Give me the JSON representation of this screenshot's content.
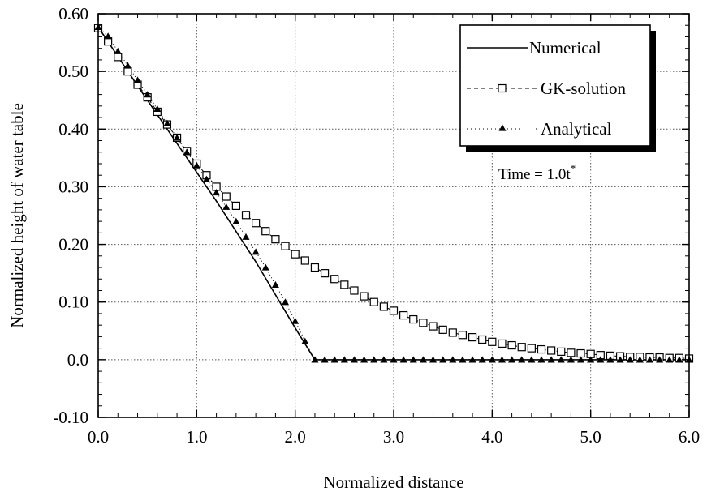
{
  "chart_data": {
    "type": "line",
    "title": "",
    "xlabel": "Normalized distance",
    "ylabel": "Normalized height of water table",
    "xlim": [
      0.0,
      6.0
    ],
    "ylim": [
      -0.1,
      0.6
    ],
    "grid": true,
    "x_ticks": [
      "0.0",
      "1.0",
      "2.0",
      "3.0",
      "4.0",
      "5.0",
      "6.0"
    ],
    "y_ticks": [
      "-0.10",
      "0.0",
      "0.10",
      "0.20",
      "0.30",
      "0.40",
      "0.50",
      "0.60"
    ],
    "legend": {
      "position": "top-right",
      "entries": [
        "Numerical",
        "GK-solution",
        "Analytical"
      ]
    },
    "annotation": {
      "text": "Time = 1.0t",
      "superscript": "*"
    },
    "series": [
      {
        "name": "Numerical",
        "style": "solid-line",
        "color": "#000000",
        "x": [
          0.0,
          0.4,
          0.8,
          1.2,
          1.6,
          2.0,
          2.2,
          6.0
        ],
        "y": [
          0.577,
          0.475,
          0.375,
          0.275,
          0.17,
          0.055,
          0.0,
          0.0
        ]
      },
      {
        "name": "GK-solution",
        "style": "dashed-open-squares",
        "color": "#000000",
        "x": [
          0.0,
          0.1,
          0.2,
          0.3,
          0.4,
          0.5,
          0.6,
          0.7,
          0.8,
          0.9,
          1.0,
          1.1,
          1.2,
          1.3,
          1.4,
          1.5,
          1.6,
          1.7,
          1.8,
          1.9,
          2.0,
          2.1,
          2.2,
          2.3,
          2.4,
          2.5,
          2.6,
          2.7,
          2.8,
          2.9,
          3.0,
          3.1,
          3.2,
          3.3,
          3.4,
          3.5,
          3.6,
          3.7,
          3.8,
          3.9,
          4.0,
          4.1,
          4.2,
          4.3,
          4.4,
          4.5,
          4.6,
          4.7,
          4.8,
          4.9,
          5.0,
          5.1,
          5.2,
          5.3,
          5.4,
          5.5,
          5.6,
          5.7,
          5.8,
          5.9,
          6.0
        ],
        "y": [
          0.575,
          0.552,
          0.525,
          0.5,
          0.477,
          0.455,
          0.43,
          0.408,
          0.385,
          0.362,
          0.34,
          0.32,
          0.3,
          0.283,
          0.267,
          0.251,
          0.237,
          0.223,
          0.209,
          0.197,
          0.183,
          0.172,
          0.16,
          0.15,
          0.14,
          0.13,
          0.12,
          0.11,
          0.1,
          0.092,
          0.085,
          0.077,
          0.07,
          0.064,
          0.058,
          0.052,
          0.047,
          0.043,
          0.039,
          0.035,
          0.031,
          0.028,
          0.025,
          0.022,
          0.02,
          0.018,
          0.016,
          0.014,
          0.012,
          0.011,
          0.01,
          0.008,
          0.007,
          0.006,
          0.005,
          0.005,
          0.004,
          0.004,
          0.003,
          0.003,
          0.002
        ]
      },
      {
        "name": "Analytical",
        "style": "dotted-filled-triangles",
        "color": "#000000",
        "x": [
          0.0,
          0.1,
          0.2,
          0.3,
          0.4,
          0.5,
          0.6,
          0.7,
          0.8,
          0.9,
          1.0,
          1.1,
          1.2,
          1.3,
          1.4,
          1.5,
          1.6,
          1.7,
          1.8,
          1.9,
          2.0,
          2.1,
          2.2,
          2.3,
          2.4,
          2.5,
          2.6,
          2.7,
          2.8,
          2.9,
          3.0,
          3.1,
          3.2,
          3.3,
          3.4,
          3.5,
          3.6,
          3.7,
          3.8,
          3.9,
          4.0,
          4.1,
          4.2,
          4.3,
          4.4,
          4.5,
          4.6,
          4.7,
          4.8,
          4.9,
          5.0,
          5.1,
          5.2,
          5.3,
          5.4,
          5.5,
          5.6,
          5.7,
          5.8,
          5.9,
          6.0
        ],
        "y": [
          0.577,
          0.561,
          0.535,
          0.51,
          0.485,
          0.46,
          0.435,
          0.41,
          0.385,
          0.36,
          0.337,
          0.313,
          0.29,
          0.265,
          0.24,
          0.213,
          0.187,
          0.16,
          0.13,
          0.1,
          0.067,
          0.032,
          0.0,
          0.0,
          0.0,
          0.0,
          0.0,
          0.0,
          0.0,
          0.0,
          0.0,
          0.0,
          0.0,
          0.0,
          0.0,
          0.0,
          0.0,
          0.0,
          0.0,
          0.0,
          0.0,
          0.0,
          0.0,
          0.0,
          0.0,
          0.0,
          0.0,
          0.0,
          0.0,
          0.0,
          0.0,
          0.0,
          0.0,
          0.0,
          0.0,
          0.0,
          0.0,
          0.0,
          0.0,
          0.0,
          0.0
        ]
      }
    ]
  }
}
